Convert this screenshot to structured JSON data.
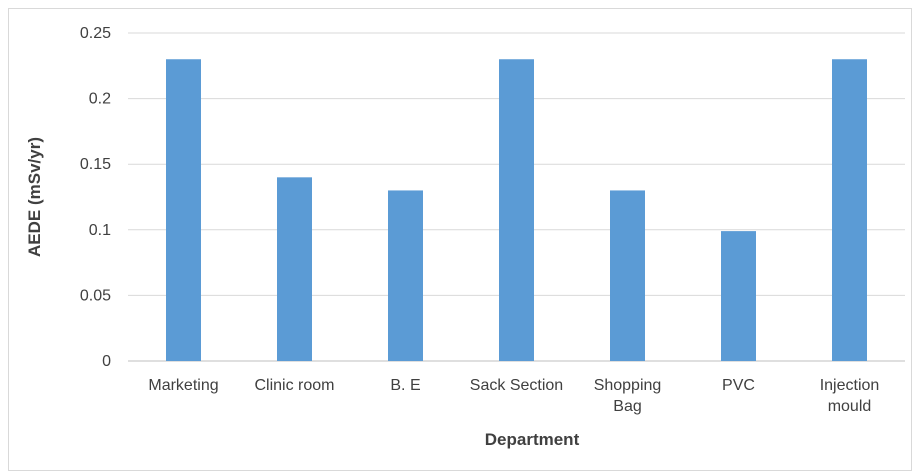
{
  "chart_data": {
    "type": "bar",
    "categories": [
      [
        "Marketing"
      ],
      [
        "Clinic room"
      ],
      [
        "B. E"
      ],
      [
        "Sack Section"
      ],
      [
        "Shopping",
        "Bag"
      ],
      [
        "PVC"
      ],
      [
        "Injection",
        "mould"
      ]
    ],
    "values": [
      0.23,
      0.14,
      0.13,
      0.23,
      0.13,
      0.099,
      0.23
    ],
    "title": "",
    "xlabel": "Department",
    "ylabel": "AEDE (mSv/yr)",
    "ylim": [
      0,
      0.25
    ],
    "yticks": [
      "0",
      "0.05",
      "0.1",
      "0.15",
      "0.2",
      "0.25"
    ],
    "grid": true,
    "legend": "none",
    "colors": {
      "bar": "#5b9bd5",
      "grid": "#d9d9d9",
      "axis": "#bfbfbf",
      "text": "#404040"
    }
  }
}
